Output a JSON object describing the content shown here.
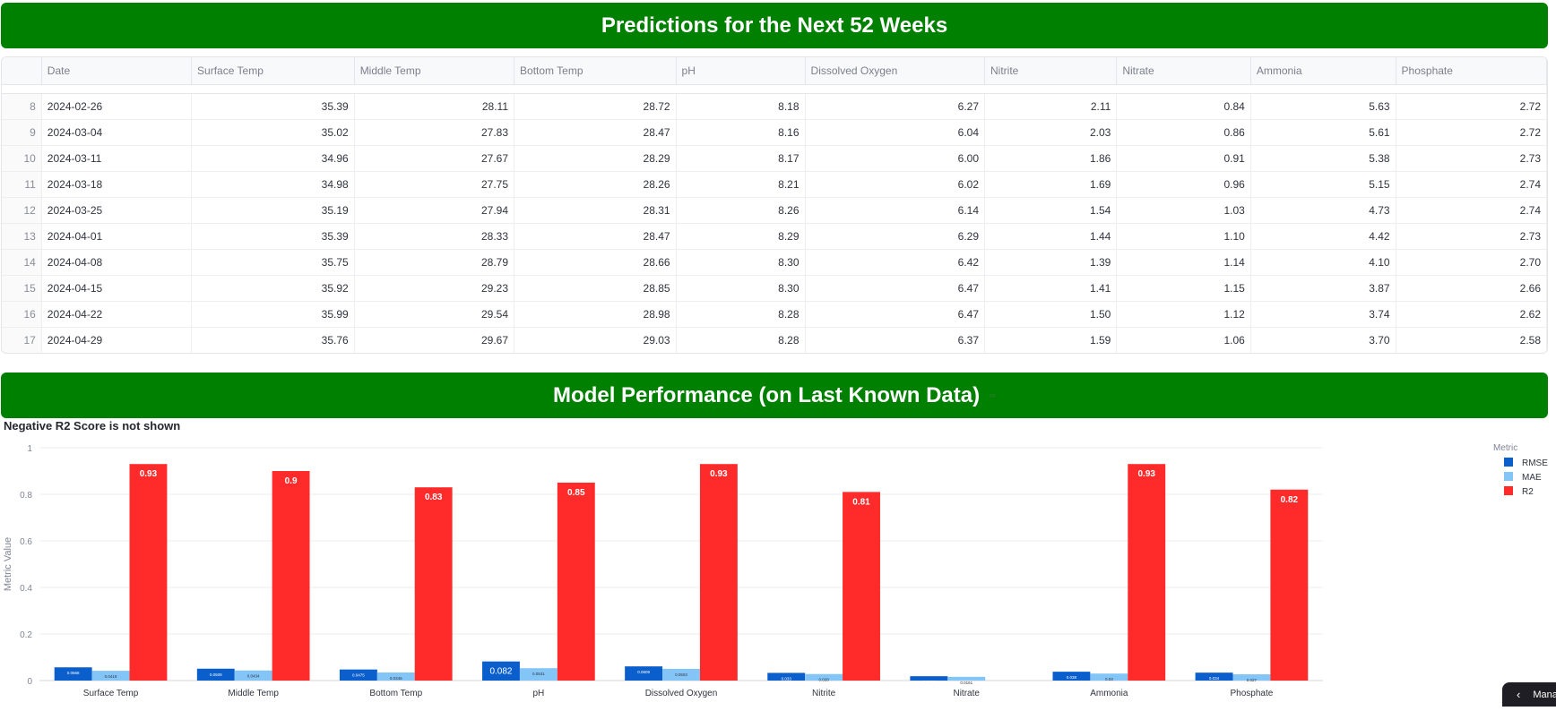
{
  "predictions": {
    "title": "Predictions for the Next 52 Weeks",
    "columns": [
      "",
      "Date",
      "Surface Temp",
      "Middle Temp",
      "Bottom Temp",
      "pH",
      "Dissolved Oxygen",
      "Nitrite",
      "Nitrate",
      "Ammonia",
      "Phosphate"
    ],
    "rows": [
      [
        "8",
        "2024-02-26",
        "35.39",
        "28.11",
        "28.72",
        "8.18",
        "6.27",
        "2.11",
        "0.84",
        "5.63",
        "2.72"
      ],
      [
        "9",
        "2024-03-04",
        "35.02",
        "27.83",
        "28.47",
        "8.16",
        "6.04",
        "2.03",
        "0.86",
        "5.61",
        "2.72"
      ],
      [
        "10",
        "2024-03-11",
        "34.96",
        "27.67",
        "28.29",
        "8.17",
        "6.00",
        "1.86",
        "0.91",
        "5.38",
        "2.73"
      ],
      [
        "11",
        "2024-03-18",
        "34.98",
        "27.75",
        "28.26",
        "8.21",
        "6.02",
        "1.69",
        "0.96",
        "5.15",
        "2.74"
      ],
      [
        "12",
        "2024-03-25",
        "35.19",
        "27.94",
        "28.31",
        "8.26",
        "6.14",
        "1.54",
        "1.03",
        "4.73",
        "2.74"
      ],
      [
        "13",
        "2024-04-01",
        "35.39",
        "28.33",
        "28.47",
        "8.29",
        "6.29",
        "1.44",
        "1.10",
        "4.42",
        "2.73"
      ],
      [
        "14",
        "2024-04-08",
        "35.75",
        "28.79",
        "28.66",
        "8.30",
        "6.42",
        "1.39",
        "1.14",
        "4.10",
        "2.70"
      ],
      [
        "15",
        "2024-04-15",
        "35.92",
        "29.23",
        "28.85",
        "8.30",
        "6.47",
        "1.41",
        "1.15",
        "3.87",
        "2.66"
      ],
      [
        "16",
        "2024-04-22",
        "35.99",
        "29.54",
        "28.98",
        "8.28",
        "6.47",
        "1.50",
        "1.12",
        "3.74",
        "2.62"
      ],
      [
        "17",
        "2024-04-29",
        "35.76",
        "29.67",
        "29.03",
        "8.28",
        "6.37",
        "1.59",
        "1.06",
        "3.70",
        "2.58"
      ]
    ]
  },
  "performance": {
    "title": "Model Performance (on Last Known Data)",
    "anchor_icon": "link-icon",
    "anchor_glyph": "∞"
  },
  "chart_data": {
    "type": "bar",
    "title": "Negative R2 Score is not shown",
    "xlabel": "",
    "ylabel": "Metric Value",
    "ylim": [
      0,
      1
    ],
    "yticks": [
      "0",
      "0.2",
      "0.4",
      "0.6",
      "0.8",
      "1"
    ],
    "legend_title": "Metric",
    "legend_position": "top-right",
    "grid": true,
    "categories": [
      "Surface Temp",
      "Middle Temp",
      "Bottom Temp",
      "pH",
      "Dissolved Oxygen",
      "Nitrite",
      "Nitrate",
      "Ammonia",
      "Phosphate"
    ],
    "series": [
      {
        "name": "RMSE",
        "color": "#0a5fcc",
        "values": [
          0.0568,
          0.0509,
          0.0475,
          0.082,
          0.0609,
          0.033,
          0.0187,
          0.038,
          0.034
        ],
        "labels": [
          "0.0568",
          "0.0509",
          "0.0475",
          "0.082",
          "0.0609",
          "0.033",
          "0.0187",
          "0.038",
          "0.034"
        ]
      },
      {
        "name": "MAE",
        "color": "#83c5f7",
        "values": [
          0.0419,
          0.0434,
          0.0346,
          0.0531,
          0.0503,
          0.028,
          0.0161,
          0.03,
          0.027
        ],
        "labels": [
          "0.0419",
          "0.0434",
          "0.0346",
          "0.0531",
          "0.0503",
          "0.028",
          "0.0161",
          "0.03",
          "0.027"
        ]
      },
      {
        "name": "R2",
        "color": "#ff2b2b",
        "values": [
          0.93,
          0.9,
          0.83,
          0.85,
          0.93,
          0.81,
          null,
          0.93,
          0.82
        ],
        "labels": [
          "0.93",
          "0.9",
          "0.83",
          "0.85",
          "0.93",
          "0.81",
          "",
          "0.93",
          "0.82"
        ]
      }
    ]
  },
  "corner_button": {
    "icon": "chevron-left-icon",
    "glyph": "‹",
    "label": "Manage app"
  }
}
